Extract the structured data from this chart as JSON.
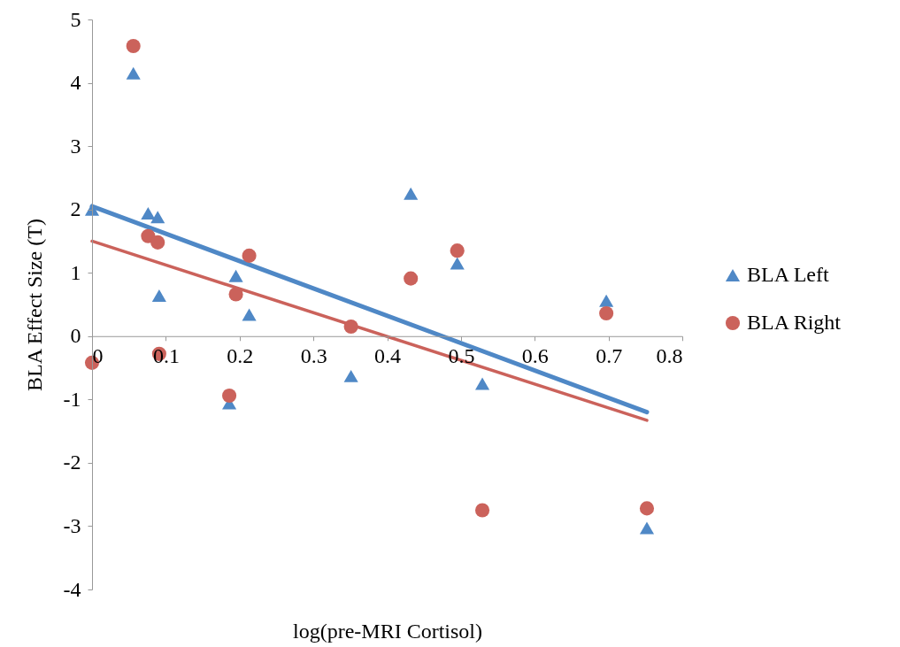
{
  "chart_data": {
    "type": "scatter",
    "xlabel": "log(pre-MRI Cortisol)",
    "ylabel": "BLA Effect Size (T)",
    "xlim": [
      0,
      0.8
    ],
    "xticks": [
      0,
      0.1,
      0.2,
      0.3,
      0.4,
      0.5,
      0.6,
      0.7,
      0.8
    ],
    "ylim": [
      -4,
      5
    ],
    "yticks": [
      -4,
      -3,
      -2,
      -1,
      0,
      1,
      2,
      3,
      4,
      5
    ],
    "grid": false,
    "legend": "right",
    "series": [
      {
        "name": "BLA  Left",
        "color": "#4f88c6",
        "marker": "triangle",
        "x": [
          0,
          0.056,
          0.076,
          0.089,
          0.091,
          0.186,
          0.195,
          0.213,
          0.351,
          0.432,
          0.495,
          0.529,
          0.697,
          0.752
        ],
        "values": [
          2.0,
          4.15,
          1.94,
          1.88,
          0.64,
          -1.06,
          0.95,
          0.34,
          -0.63,
          2.25,
          1.15,
          -0.75,
          0.56,
          -3.03
        ]
      },
      {
        "name": "BLA  Right",
        "color": "#cb625b",
        "marker": "circle",
        "x": [
          0,
          0.056,
          0.076,
          0.089,
          0.091,
          0.186,
          0.195,
          0.213,
          0.351,
          0.432,
          0.495,
          0.529,
          0.697,
          0.752
        ],
        "values": [
          -0.42,
          4.58,
          1.58,
          1.48,
          -0.28,
          -0.94,
          0.66,
          1.27,
          0.15,
          0.91,
          1.35,
          -2.75,
          0.36,
          -2.72
        ]
      },
      {
        "type": "line",
        "color": "#4f88c6",
        "x": [
          0,
          0.752
        ],
        "values": [
          2.05,
          -1.2
        ]
      },
      {
        "type": "line",
        "color": "#cb625b",
        "x": [
          0,
          0.752
        ],
        "values": [
          1.5,
          -1.33
        ]
      }
    ]
  }
}
